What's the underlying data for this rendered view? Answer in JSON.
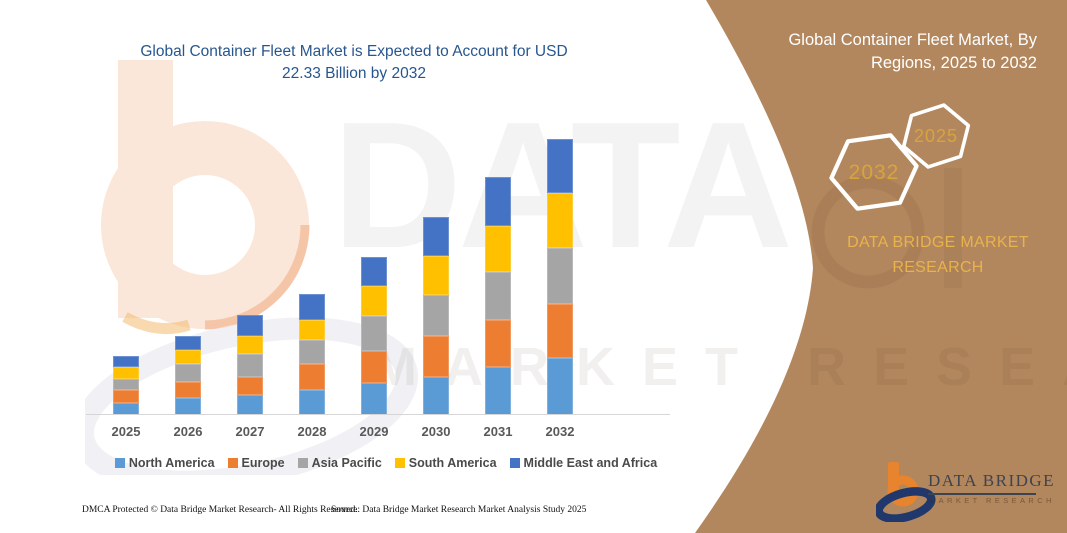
{
  "chart": {
    "title_line1": "Global Container Fleet Market is Expected to Account for USD",
    "title_line2": "22.33 Billion by 2032",
    "title_color": "#27568f"
  },
  "chart_data": {
    "type": "bar",
    "stacked": true,
    "unit": "USD Billion",
    "title": "Global Container Fleet Market is Expected to Account for USD 22.33 Billion by 2032",
    "categories": [
      "2025",
      "2026",
      "2027",
      "2028",
      "2029",
      "2030",
      "2031",
      "2032"
    ],
    "series": [
      {
        "name": "North America",
        "color": "#5B9BD5",
        "values": [
          0.95,
          1.35,
          1.6,
          2.0,
          2.6,
          3.1,
          3.9,
          4.6
        ]
      },
      {
        "name": "Europe",
        "color": "#ED7D31",
        "values": [
          1.05,
          1.3,
          1.5,
          2.1,
          2.6,
          3.3,
          3.75,
          4.4
        ]
      },
      {
        "name": "Asia Pacific",
        "color": "#A5A5A5",
        "values": [
          0.95,
          1.45,
          1.8,
          2.0,
          2.8,
          3.35,
          3.95,
          4.5
        ]
      },
      {
        "name": "South America",
        "color": "#FFC000",
        "values": [
          0.95,
          1.2,
          1.5,
          1.6,
          2.4,
          3.1,
          3.7,
          4.5
        ]
      },
      {
        "name": "Middle East and Africa",
        "color": "#4472C4",
        "values": [
          0.9,
          1.1,
          1.7,
          2.1,
          2.4,
          3.15,
          3.95,
          4.33
        ]
      }
    ],
    "totals_estimated": [
      4.8,
      6.4,
      8.1,
      9.8,
      12.8,
      16.0,
      19.25,
      22.33
    ],
    "ylim": [
      0,
      22.33
    ],
    "y_axis_visible": false,
    "gridlines": false,
    "legend_position": "bottom"
  },
  "watermark": {
    "line1": "DATA BRIDGE",
    "line2": "MARKET RESEARCH"
  },
  "panel": {
    "bg_color": "#b3875e",
    "title_line1": "Global Container Fleet Market, By",
    "title_line2": "Regions, 2025 to 2032",
    "hexagon_front_label": "2032",
    "hexagon_back_label": "2025",
    "hex_label_color": "#d9a33c",
    "brand_line1": "DATA BRIDGE MARKET",
    "brand_line2": "RESEARCH",
    "brand_color": "#e9b24a"
  },
  "logo": {
    "title": "DATA BRIDGE",
    "subtitle": "MARKET RESEARCH"
  },
  "footer": {
    "left": "DMCA Protected © Data Bridge Market Research-  All Rights Reserved.",
    "right": "Source: Data Bridge Market Research  Market Analysis Study 2025"
  }
}
